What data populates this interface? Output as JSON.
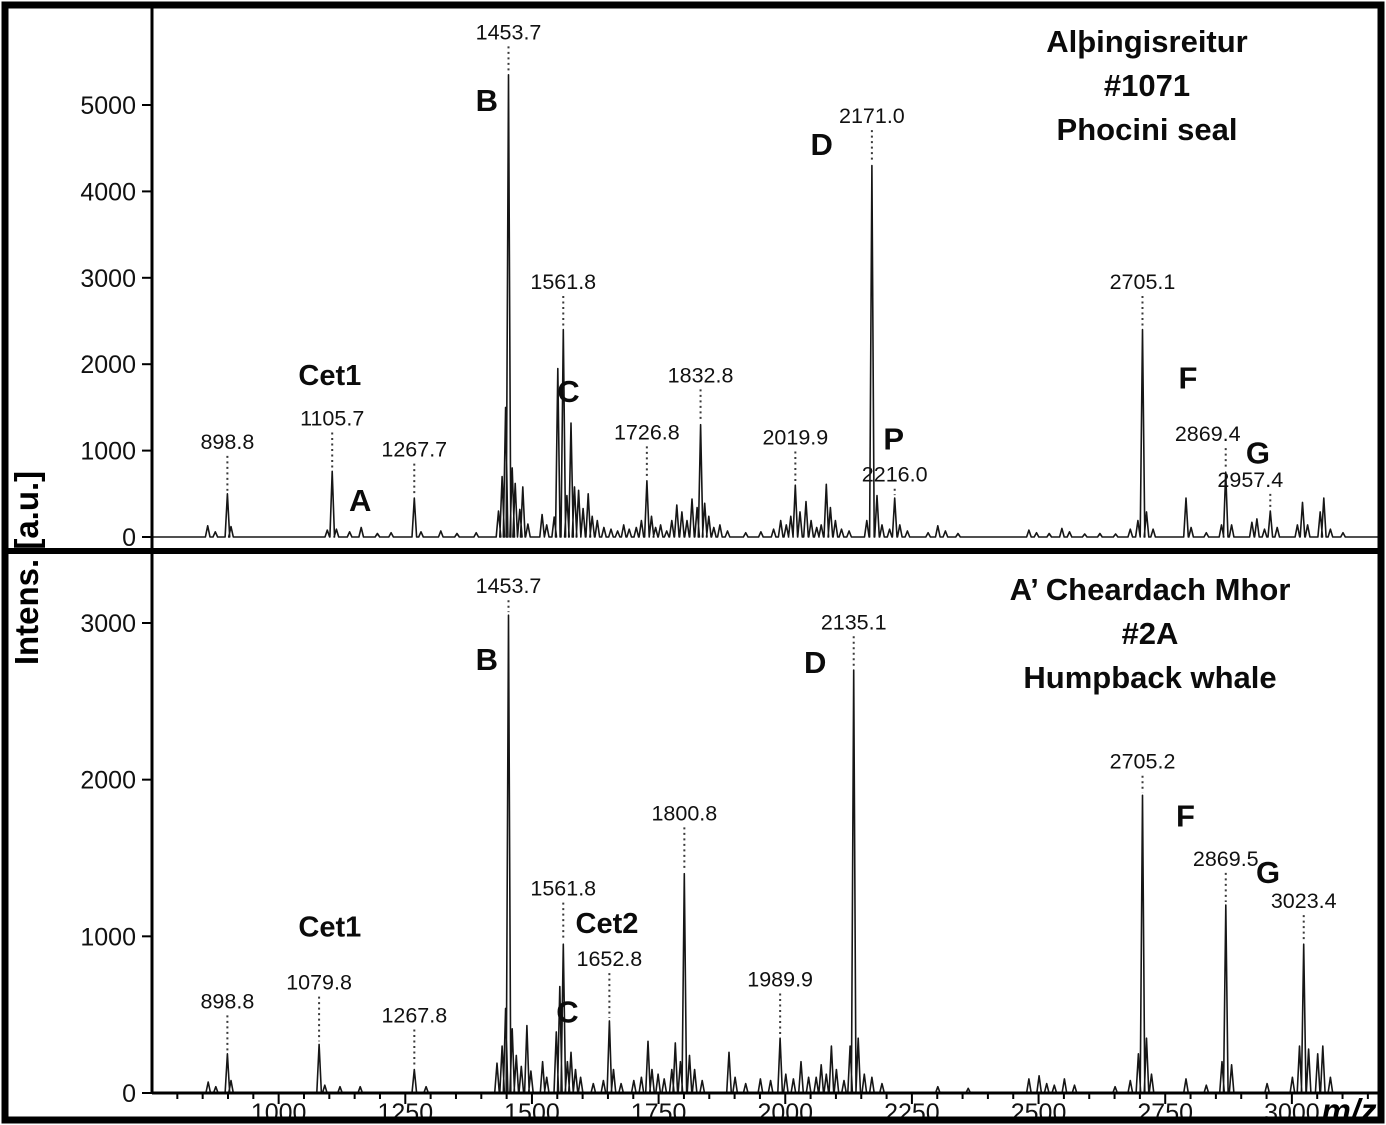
{
  "figure": {
    "ylabel": "Intens. [a.u.]",
    "xlabel": "m/z"
  },
  "colors": {
    "ink": "#111111",
    "paper": "#ffffff"
  },
  "chart_data": [
    {
      "type": "line",
      "title": "Alþingisreitur #1071 Phocini seal",
      "title_lines": [
        "Alþingisreitur",
        "#1071",
        "Phocini seal"
      ],
      "xlabel": "m/z",
      "ylabel": "Intens. [a.u.]",
      "grid": false,
      "xlim": [
        750,
        3170
      ],
      "xticks": [
        1000,
        1250,
        1500,
        1750,
        2000,
        2250,
        2500,
        2750,
        3000
      ],
      "ylim": [
        0,
        6050
      ],
      "yticks": [
        0,
        1000,
        2000,
        3000,
        4000,
        5000
      ],
      "labeled_peaks": [
        {
          "label": "898.8",
          "mz": 898.8,
          "peak": 500,
          "label_y": 1020
        },
        {
          "label": "1105.7",
          "mz": 1105.7,
          "peak": 760,
          "label_y": 1290
        },
        {
          "label": "1267.7",
          "mz": 1267.7,
          "peak": 450,
          "label_y": 930
        },
        {
          "label": "1453.7",
          "mz": 1453.7,
          "peak": 5350,
          "label_y": 5760
        },
        {
          "label": "1561.8",
          "mz": 1561.8,
          "peak": 2400,
          "label_y": 2870
        },
        {
          "label": "1726.8",
          "mz": 1726.8,
          "peak": 650,
          "label_y": 1130
        },
        {
          "label": "1832.8",
          "mz": 1832.8,
          "peak": 1300,
          "label_y": 1790
        },
        {
          "label": "2019.9",
          "mz": 2019.9,
          "peak": 600,
          "label_y": 1070
        },
        {
          "label": "2171.0",
          "mz": 2171,
          "peak": 4300,
          "label_y": 4790
        },
        {
          "label": "2216.0",
          "mz": 2216,
          "peak": 450,
          "label_y": 640
        },
        {
          "label": "2705.1",
          "mz": 2705.1,
          "peak": 2400,
          "label_y": 2870
        },
        {
          "label": "2869.4",
          "mz": 2869.4,
          "peak": 750,
          "label_y": 1110,
          "dx": -18
        },
        {
          "label": "2957.4",
          "mz": 2957.4,
          "peak": 300,
          "label_y": 580,
          "dx": -20
        }
      ],
      "letter_annotations": [
        {
          "text": "Cet1",
          "mz": 1101,
          "y": 1760,
          "fs": 29
        },
        {
          "text": "A",
          "mz": 1161,
          "y": 300
        },
        {
          "text": "B",
          "mz": 1411,
          "y": 4930
        },
        {
          "text": "C",
          "mz": 1572,
          "y": 1560
        },
        {
          "text": "D",
          "mz": 2072,
          "y": 4420
        },
        {
          "text": "P",
          "mz": 2214,
          "y": 1010
        },
        {
          "text": "F",
          "mz": 2795,
          "y": 1720
        },
        {
          "text": "G",
          "mz": 2933,
          "y": 850
        }
      ],
      "peaks": [
        [
          860,
          130
        ],
        [
          875,
          60
        ],
        [
          898.8,
          500
        ],
        [
          906,
          120
        ],
        [
          1096,
          80
        ],
        [
          1105.7,
          760
        ],
        [
          1114,
          90
        ],
        [
          1140,
          60
        ],
        [
          1163,
          110
        ],
        [
          1195,
          40
        ],
        [
          1222,
          50
        ],
        [
          1267.7,
          450
        ],
        [
          1281,
          60
        ],
        [
          1320,
          70
        ],
        [
          1352,
          40
        ],
        [
          1390,
          50
        ],
        [
          1434,
          300
        ],
        [
          1441,
          700
        ],
        [
          1448,
          1500
        ],
        [
          1453.7,
          5350
        ],
        [
          1461,
          800
        ],
        [
          1467,
          620
        ],
        [
          1476,
          320
        ],
        [
          1482,
          580
        ],
        [
          1492,
          150
        ],
        [
          1520,
          260
        ],
        [
          1529,
          140
        ],
        [
          1544,
          230
        ],
        [
          1551,
          1950
        ],
        [
          1561.8,
          2400
        ],
        [
          1569,
          480
        ],
        [
          1577,
          1320
        ],
        [
          1584,
          580
        ],
        [
          1592,
          540
        ],
        [
          1601,
          330
        ],
        [
          1611,
          500
        ],
        [
          1619,
          240
        ],
        [
          1629,
          190
        ],
        [
          1642,
          110
        ],
        [
          1656,
          90
        ],
        [
          1669,
          70
        ],
        [
          1681,
          140
        ],
        [
          1692,
          90
        ],
        [
          1706,
          110
        ],
        [
          1716,
          190
        ],
        [
          1726.8,
          650
        ],
        [
          1736,
          240
        ],
        [
          1744,
          110
        ],
        [
          1754,
          140
        ],
        [
          1766,
          70
        ],
        [
          1776,
          190
        ],
        [
          1786,
          370
        ],
        [
          1796,
          290
        ],
        [
          1806,
          190
        ],
        [
          1816,
          440
        ],
        [
          1826,
          340
        ],
        [
          1832.8,
          1300
        ],
        [
          1841,
          390
        ],
        [
          1849,
          240
        ],
        [
          1859,
          110
        ],
        [
          1871,
          140
        ],
        [
          1886,
          70
        ],
        [
          1922,
          50
        ],
        [
          1952,
          60
        ],
        [
          1977,
          90
        ],
        [
          1991,
          190
        ],
        [
          2002,
          140
        ],
        [
          2011,
          240
        ],
        [
          2019.9,
          600
        ],
        [
          2029,
          290
        ],
        [
          2041,
          410
        ],
        [
          2051,
          190
        ],
        [
          2062,
          110
        ],
        [
          2071,
          140
        ],
        [
          2081,
          610
        ],
        [
          2089,
          340
        ],
        [
          2099,
          190
        ],
        [
          2111,
          90
        ],
        [
          2126,
          70
        ],
        [
          2161,
          190
        ],
        [
          2171,
          4300
        ],
        [
          2181,
          480
        ],
        [
          2191,
          140
        ],
        [
          2206,
          90
        ],
        [
          2216,
          450
        ],
        [
          2226,
          140
        ],
        [
          2241,
          70
        ],
        [
          2282,
          50
        ],
        [
          2301,
          130
        ],
        [
          2316,
          70
        ],
        [
          2341,
          40
        ],
        [
          2481,
          80
        ],
        [
          2496,
          50
        ],
        [
          2521,
          40
        ],
        [
          2546,
          100
        ],
        [
          2561,
          60
        ],
        [
          2591,
          35
        ],
        [
          2621,
          40
        ],
        [
          2652,
          35
        ],
        [
          2681,
          90
        ],
        [
          2696,
          190
        ],
        [
          2705.1,
          2400
        ],
        [
          2713,
          290
        ],
        [
          2726,
          90
        ],
        [
          2791,
          450
        ],
        [
          2801,
          110
        ],
        [
          2831,
          50
        ],
        [
          2861,
          140
        ],
        [
          2869.4,
          750
        ],
        [
          2881,
          140
        ],
        [
          2921,
          170
        ],
        [
          2931,
          210
        ],
        [
          2946,
          90
        ],
        [
          2957.4,
          300
        ],
        [
          2971,
          110
        ],
        [
          3011,
          140
        ],
        [
          3021,
          400
        ],
        [
          3031,
          140
        ],
        [
          3056,
          290
        ],
        [
          3063,
          450
        ],
        [
          3076,
          90
        ],
        [
          3101,
          50
        ]
      ]
    },
    {
      "type": "line",
      "title": "A’ Cheardach Mhor #2A Humpback whale",
      "title_lines": [
        "A’ Cheardach Mhor",
        "#2A",
        "Humpback whale"
      ],
      "xlabel": "m/z",
      "ylabel": "Intens. [a.u.]",
      "grid": false,
      "xlim": [
        750,
        3170
      ],
      "xticks": [
        1000,
        1250,
        1500,
        1750,
        2000,
        2250,
        2500,
        2750,
        3000
      ],
      "ylim": [
        0,
        3440
      ],
      "yticks": [
        0,
        1000,
        2000,
        3000
      ],
      "labeled_peaks": [
        {
          "label": "898.8",
          "mz": 898.8,
          "peak": 250,
          "label_y": 540
        },
        {
          "label": "1079.8",
          "mz": 1079.8,
          "peak": 310,
          "label_y": 660
        },
        {
          "label": "1267.8",
          "mz": 1267.8,
          "peak": 150,
          "label_y": 450
        },
        {
          "label": "1453.7",
          "mz": 1453.7,
          "peak": 3050,
          "label_y": 3190
        },
        {
          "label": "1561.8",
          "mz": 1561.8,
          "peak": 950,
          "label_y": 1260
        },
        {
          "label": "1652.8",
          "mz": 1652.8,
          "peak": 460,
          "label_y": 810
        },
        {
          "label": "1800.8",
          "mz": 1800.8,
          "peak": 1400,
          "label_y": 1740
        },
        {
          "label": "1989.9",
          "mz": 1989.9,
          "peak": 350,
          "label_y": 680
        },
        {
          "label": "2135.1",
          "mz": 2135.1,
          "peak": 2700,
          "label_y": 2960
        },
        {
          "label": "2705.2",
          "mz": 2705.2,
          "peak": 1900,
          "label_y": 2070
        },
        {
          "label": "2869.5",
          "mz": 2869.5,
          "peak": 1200,
          "label_y": 1450
        },
        {
          "label": "3023.4",
          "mz": 3023.4,
          "peak": 950,
          "label_y": 1180
        }
      ],
      "letter_annotations": [
        {
          "text": "Cet1",
          "mz": 1101,
          "y": 1000,
          "fs": 29
        },
        {
          "text": "B",
          "mz": 1411,
          "y": 2700
        },
        {
          "text": "C",
          "mz": 1570,
          "y": 450
        },
        {
          "text": "Cet2",
          "mz": 1648,
          "y": 1020,
          "fs": 29
        },
        {
          "text": "D",
          "mz": 2059,
          "y": 2680
        },
        {
          "text": "F",
          "mz": 2790,
          "y": 1700
        },
        {
          "text": "G",
          "mz": 2953,
          "y": 1340
        }
      ],
      "peaks": [
        [
          861,
          70
        ],
        [
          876,
          40
        ],
        [
          898.8,
          250
        ],
        [
          906,
          80
        ],
        [
          1079.8,
          310
        ],
        [
          1091,
          50
        ],
        [
          1121,
          40
        ],
        [
          1161,
          40
        ],
        [
          1267.8,
          150
        ],
        [
          1291,
          40
        ],
        [
          1431,
          190
        ],
        [
          1441,
          300
        ],
        [
          1448,
          540
        ],
        [
          1453.7,
          3050
        ],
        [
          1461,
          410
        ],
        [
          1469,
          240
        ],
        [
          1479,
          170
        ],
        [
          1490,
          430
        ],
        [
          1498,
          140
        ],
        [
          1521,
          200
        ],
        [
          1529,
          100
        ],
        [
          1548,
          390
        ],
        [
          1555,
          680
        ],
        [
          1561.8,
          950
        ],
        [
          1570,
          200
        ],
        [
          1577,
          260
        ],
        [
          1586,
          150
        ],
        [
          1596,
          100
        ],
        [
          1621,
          60
        ],
        [
          1641,
          80
        ],
        [
          1652.8,
          460
        ],
        [
          1661,
          150
        ],
        [
          1676,
          60
        ],
        [
          1701,
          80
        ],
        [
          1716,
          100
        ],
        [
          1729,
          330
        ],
        [
          1737,
          150
        ],
        [
          1749,
          120
        ],
        [
          1761,
          90
        ],
        [
          1776,
          150
        ],
        [
          1783,
          320
        ],
        [
          1793,
          200
        ],
        [
          1800.8,
          1400
        ],
        [
          1811,
          240
        ],
        [
          1821,
          150
        ],
        [
          1836,
          80
        ],
        [
          1889,
          260
        ],
        [
          1901,
          100
        ],
        [
          1922,
          60
        ],
        [
          1951,
          90
        ],
        [
          1971,
          80
        ],
        [
          1989.9,
          350
        ],
        [
          2001,
          120
        ],
        [
          2016,
          90
        ],
        [
          2031,
          200
        ],
        [
          2046,
          100
        ],
        [
          2061,
          100
        ],
        [
          2071,
          180
        ],
        [
          2081,
          120
        ],
        [
          2091,
          300
        ],
        [
          2101,
          150
        ],
        [
          2116,
          80
        ],
        [
          2128,
          300
        ],
        [
          2135.1,
          2700
        ],
        [
          2144,
          350
        ],
        [
          2156,
          120
        ],
        [
          2171,
          100
        ],
        [
          2191,
          60
        ],
        [
          2301,
          40
        ],
        [
          2361,
          30
        ],
        [
          2481,
          90
        ],
        [
          2501,
          110
        ],
        [
          2516,
          60
        ],
        [
          2531,
          50
        ],
        [
          2551,
          90
        ],
        [
          2571,
          50
        ],
        [
          2651,
          40
        ],
        [
          2681,
          80
        ],
        [
          2697,
          250
        ],
        [
          2705.2,
          1900
        ],
        [
          2713,
          350
        ],
        [
          2723,
          120
        ],
        [
          2791,
          90
        ],
        [
          2831,
          50
        ],
        [
          2862,
          200
        ],
        [
          2869.5,
          1200
        ],
        [
          2881,
          180
        ],
        [
          2951,
          60
        ],
        [
          3001,
          100
        ],
        [
          3015,
          300
        ],
        [
          3023.4,
          950
        ],
        [
          3033,
          280
        ],
        [
          3051,
          250
        ],
        [
          3061,
          300
        ],
        [
          3076,
          100
        ]
      ]
    }
  ]
}
